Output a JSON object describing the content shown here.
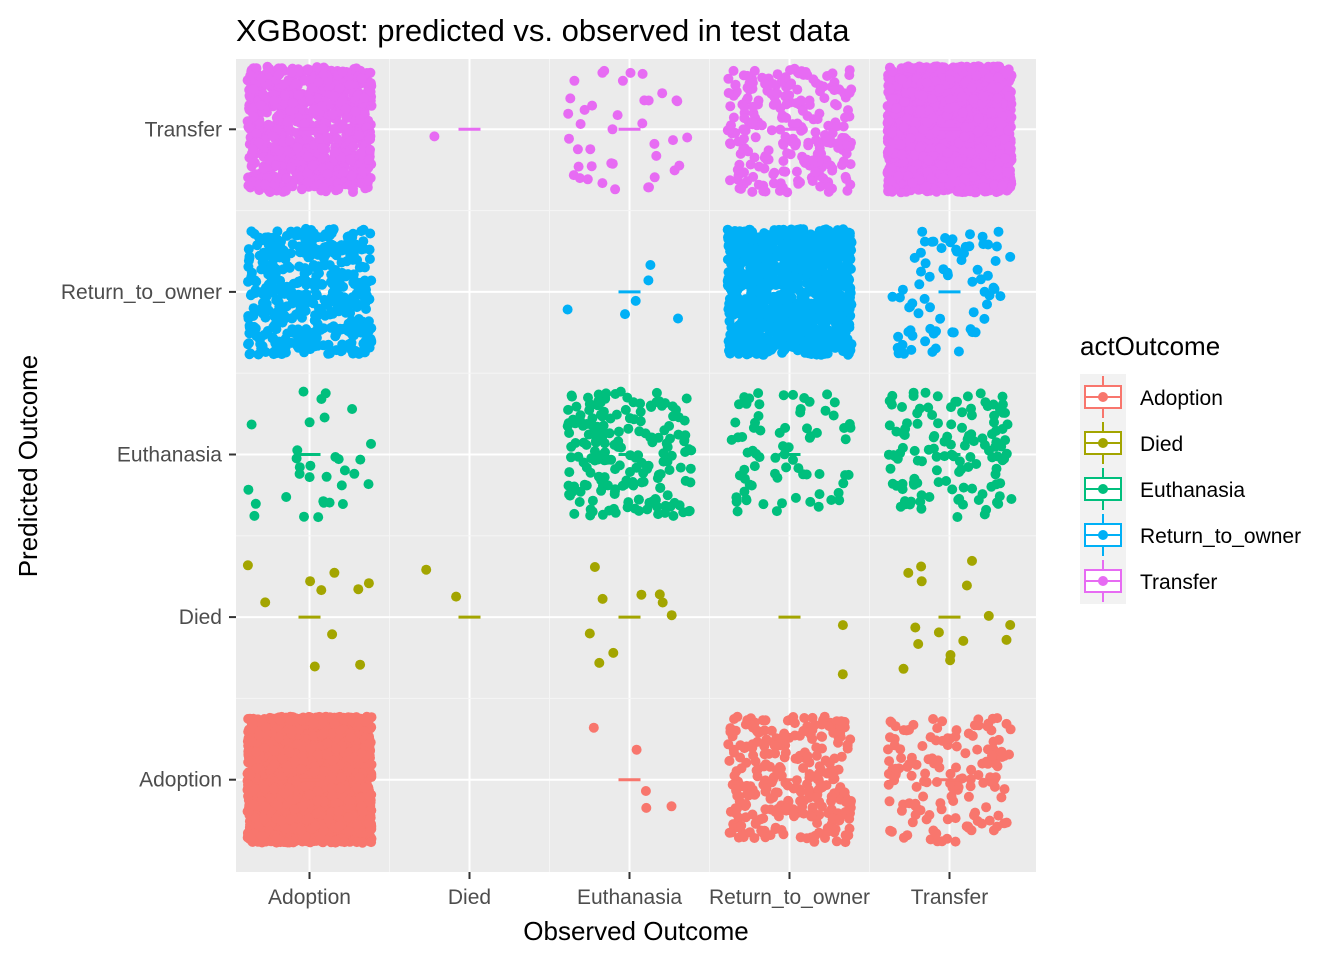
{
  "chart_data": {
    "type": "scatter",
    "title": "XGBoost: predicted vs. observed in test data",
    "xlabel": "Observed Outcome",
    "ylabel": "Predicted Outcome",
    "categories": [
      "Adoption",
      "Died",
      "Euthanasia",
      "Return_to_owner",
      "Transfer"
    ],
    "x_categories": [
      "Adoption",
      "Died",
      "Euthanasia",
      "Return_to_owner",
      "Transfer"
    ],
    "y_categories": [
      "Adoption",
      "Died",
      "Euthanasia",
      "Return_to_owner",
      "Transfer"
    ],
    "jitter": true,
    "median_markers": true,
    "grid": true,
    "legend_position": "right",
    "legend": {
      "title": "actOutcome",
      "entries": [
        "Adoption",
        "Died",
        "Euthanasia",
        "Return_to_owner",
        "Transfer"
      ]
    },
    "colors": {
      "Adoption": "#F8766D",
      "Died": "#A3A500",
      "Euthanasia": "#00BF7D",
      "Return_to_owner": "#00B0F6",
      "Transfer": "#E76BF3"
    },
    "series": [
      {
        "name": "Adoption",
        "counts": {
          "Adoption": 2600,
          "Died": 0,
          "Euthanasia": 5,
          "Return_to_owner": 300,
          "Transfer": 150
        }
      },
      {
        "name": "Died",
        "counts": {
          "Adoption": 10,
          "Died": 2,
          "Euthanasia": 9,
          "Return_to_owner": 2,
          "Transfer": 15
        }
      },
      {
        "name": "Euthanasia",
        "counts": {
          "Adoption": 32,
          "Died": 0,
          "Euthanasia": 200,
          "Return_to_owner": 75,
          "Transfer": 130
        }
      },
      {
        "name": "Return_to_owner",
        "counts": {
          "Adoption": 470,
          "Died": 0,
          "Euthanasia": 6,
          "Return_to_owner": 1100,
          "Transfer": 75
        }
      },
      {
        "name": "Transfer",
        "counts": {
          "Adoption": 800,
          "Died": 1,
          "Euthanasia": 40,
          "Return_to_owner": 250,
          "Transfer": 2400
        }
      }
    ]
  }
}
